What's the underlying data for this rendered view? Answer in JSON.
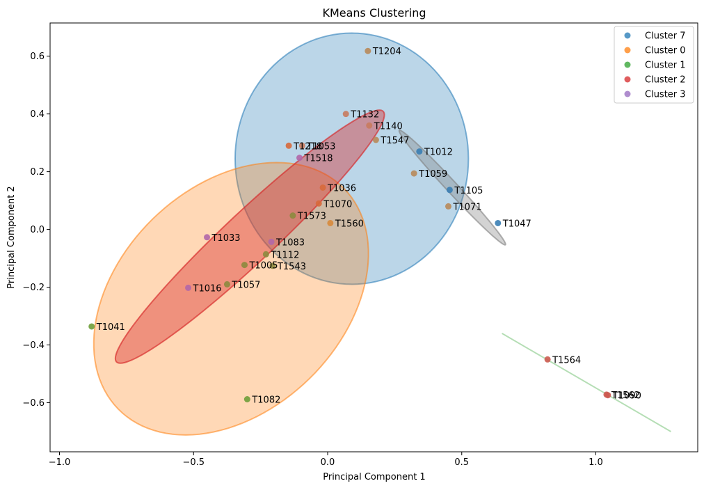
{
  "chart_data": {
    "type": "scatter",
    "title": "KMeans Clustering",
    "xlabel": "Principal Component 1",
    "ylabel": "Principal Component 2",
    "xlim": [
      -1.035,
      1.38
    ],
    "ylim": [
      -0.77,
      0.715
    ],
    "xticks": [
      -1.0,
      -0.5,
      0.0,
      0.5,
      1.0
    ],
    "xtick_labels": [
      "−1.0",
      "−0.5",
      "0.0",
      "0.5",
      "1.0"
    ],
    "yticks": [
      -0.6,
      -0.4,
      -0.2,
      0.0,
      0.2,
      0.4,
      0.6
    ],
    "ytick_labels": [
      "−0.6",
      "−0.4",
      "−0.2",
      "0.0",
      "0.2",
      "0.4",
      "0.6"
    ],
    "grid": false,
    "legend_position": "top-right",
    "legend": [
      {
        "name": "Cluster 7",
        "color": "#1f77b4"
      },
      {
        "name": "Cluster 0",
        "color": "#ff7f0e"
      },
      {
        "name": "Cluster 1",
        "color": "#2ca02c"
      },
      {
        "name": "Cluster 2",
        "color": "#d62728"
      },
      {
        "name": "Cluster 3",
        "color": "#9467bd"
      }
    ],
    "ellipses": [
      {
        "center": [
          0.09,
          0.245
        ],
        "width": 0.87,
        "height": 0.87,
        "angle": 0,
        "color": "#1f77b4",
        "alpha": 0.3
      },
      {
        "center": [
          -0.36,
          -0.24
        ],
        "width": 1.14,
        "height": 0.8,
        "angle": 38,
        "color": "#ff7f0e",
        "alpha": 0.3
      },
      {
        "center": [
          -0.29,
          -0.025
        ],
        "width": 1.32,
        "height": 0.18,
        "angle": 41,
        "color": "#d62728",
        "alpha": 0.4
      },
      {
        "center": [
          0.465,
          0.145
        ],
        "width": 0.56,
        "height": 0.04,
        "angle": -45,
        "color": "#808080",
        "alpha": 0.35
      }
    ],
    "lines": [
      {
        "x": [
          0.65,
          1.28
        ],
        "y": [
          -0.36,
          -0.7
        ],
        "color": "#2ca02c",
        "alpha": 0.35
      }
    ],
    "points": [
      {
        "label": "T1204",
        "x": 0.15,
        "y": 0.618,
        "color": "#b88a5a"
      },
      {
        "label": "T1132",
        "x": 0.068,
        "y": 0.4,
        "color": "#c87b5e"
      },
      {
        "label": "T1140",
        "x": 0.155,
        "y": 0.36,
        "color": "#c87b5e"
      },
      {
        "label": "T1547",
        "x": 0.18,
        "y": 0.31,
        "color": "#b88a5a"
      },
      {
        "label": "T1218",
        "x": -0.145,
        "y": 0.29,
        "color": "#d7693b"
      },
      {
        "label": "T1053",
        "x": -0.095,
        "y": 0.29,
        "color": "#c87b5e"
      },
      {
        "label": "T1012",
        "x": 0.342,
        "y": 0.27,
        "color": "#3a7eb4"
      },
      {
        "label": "T1518",
        "x": -0.105,
        "y": 0.248,
        "color": "#b167a8"
      },
      {
        "label": "T1059",
        "x": 0.322,
        "y": 0.194,
        "color": "#b88a5a"
      },
      {
        "label": "T1036",
        "x": -0.018,
        "y": 0.145,
        "color": "#d7693b"
      },
      {
        "label": "T1105",
        "x": 0.455,
        "y": 0.137,
        "color": "#3a7eb4"
      },
      {
        "label": "T1070",
        "x": -0.033,
        "y": 0.09,
        "color": "#d7693b"
      },
      {
        "label": "T1071",
        "x": 0.45,
        "y": 0.08,
        "color": "#b88a5a"
      },
      {
        "label": "T1573",
        "x": -0.13,
        "y": 0.048,
        "color": "#8c8a3e"
      },
      {
        "label": "T1560",
        "x": 0.01,
        "y": 0.022,
        "color": "#d7893b"
      },
      {
        "label": "T1047",
        "x": 0.635,
        "y": 0.022,
        "color": "#3a7eb4"
      },
      {
        "label": "T1033",
        "x": -0.45,
        "y": -0.027,
        "color": "#b167a8"
      },
      {
        "label": "T1083",
        "x": -0.21,
        "y": -0.043,
        "color": "#b167a8"
      },
      {
        "label": "T1112",
        "x": -0.23,
        "y": -0.086,
        "color": "#8c8a3e"
      },
      {
        "label": "T1005",
        "x": -0.31,
        "y": -0.123,
        "color": "#8c8a3e"
      },
      {
        "label": "T1543",
        "x": -0.205,
        "y": -0.126,
        "color": "#8c8a3e"
      },
      {
        "label": "T1057",
        "x": -0.375,
        "y": -0.19,
        "color": "#8c8a3e"
      },
      {
        "label": "T1016",
        "x": -0.52,
        "y": -0.202,
        "color": "#b167a8"
      },
      {
        "label": "T1041",
        "x": -0.88,
        "y": -0.336,
        "color": "#6f9e3a"
      },
      {
        "label": "T1564",
        "x": 0.82,
        "y": -0.45,
        "color": "#cc5a4f"
      },
      {
        "label": "T1082",
        "x": -0.3,
        "y": -0.588,
        "color": "#6f9e3a"
      },
      {
        "label": "T1562",
        "x": 1.04,
        "y": -0.572,
        "color": "#cc5a4f"
      },
      {
        "label": "T1090",
        "x": 1.045,
        "y": -0.574,
        "color": "#cc5a4f"
      }
    ]
  }
}
